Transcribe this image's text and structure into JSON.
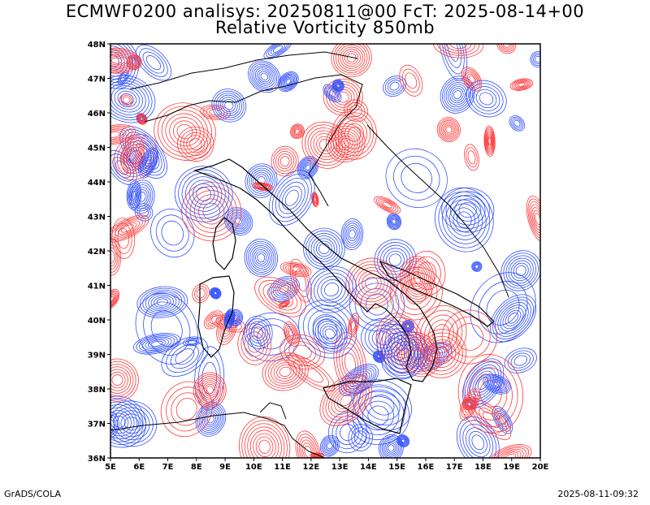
{
  "title_line1": "ECMWF0200 analisys: 20250811@00 FcT: 2025-08-14+00",
  "title_line2": "Relative Vorticity 850mb",
  "footer_left": "GrADS/COLA",
  "footer_right": "2025-08-11-09:32",
  "map": {
    "lon_range": [
      5,
      20
    ],
    "lat_range": [
      36,
      48
    ],
    "lon_labels": [
      "5E",
      "6E",
      "7E",
      "8E",
      "9E",
      "10E",
      "11E",
      "12E",
      "13E",
      "14E",
      "15E",
      "16E",
      "17E",
      "18E",
      "19E",
      "20E"
    ],
    "lat_labels": [
      "36N",
      "37N",
      "38N",
      "39N",
      "40N",
      "41N",
      "42N",
      "43N",
      "44N",
      "45N",
      "46N",
      "47N",
      "48N"
    ],
    "colors": {
      "positive_contour": "#ff3b3b",
      "negative_contour": "#3050ff",
      "coastline": "#000000",
      "frame": "#000000"
    }
  }
}
